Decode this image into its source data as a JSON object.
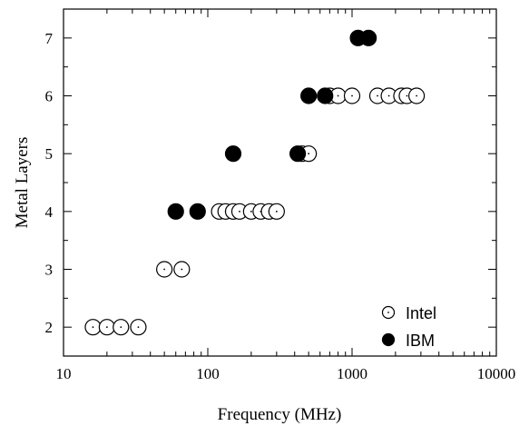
{
  "chart_data": {
    "type": "scatter",
    "title": "",
    "xlabel": "Frequency (MHz)",
    "ylabel": "Metal Layers",
    "xscale": "log",
    "xlim": [
      10,
      10000
    ],
    "ylim": [
      1.5,
      7.5
    ],
    "xticks": [
      10,
      100,
      1000,
      10000
    ],
    "xtick_labels": [
      "10",
      "100",
      "1000",
      "10000"
    ],
    "yticks": [
      2,
      3,
      4,
      5,
      6,
      7
    ],
    "ytick_labels": [
      "2",
      "3",
      "4",
      "5",
      "6",
      "7"
    ],
    "grid": false,
    "legend_position": "bottom-right",
    "series": [
      {
        "name": "Intel",
        "marker": "open-circle",
        "color": "#000000",
        "points": [
          {
            "x": 16,
            "y": 2
          },
          {
            "x": 20,
            "y": 2
          },
          {
            "x": 25,
            "y": 2
          },
          {
            "x": 33,
            "y": 2
          },
          {
            "x": 50,
            "y": 3
          },
          {
            "x": 66,
            "y": 3
          },
          {
            "x": 120,
            "y": 4
          },
          {
            "x": 133,
            "y": 4
          },
          {
            "x": 150,
            "y": 4
          },
          {
            "x": 166,
            "y": 4
          },
          {
            "x": 200,
            "y": 4
          },
          {
            "x": 233,
            "y": 4
          },
          {
            "x": 266,
            "y": 4
          },
          {
            "x": 300,
            "y": 4
          },
          {
            "x": 450,
            "y": 5
          },
          {
            "x": 500,
            "y": 5
          },
          {
            "x": 700,
            "y": 6
          },
          {
            "x": 800,
            "y": 6
          },
          {
            "x": 1000,
            "y": 6
          },
          {
            "x": 1500,
            "y": 6
          },
          {
            "x": 1800,
            "y": 6
          },
          {
            "x": 2200,
            "y": 6
          },
          {
            "x": 2400,
            "y": 6
          },
          {
            "x": 2800,
            "y": 6
          }
        ]
      },
      {
        "name": "IBM",
        "marker": "filled-circle",
        "color": "#000000",
        "points": [
          {
            "x": 60,
            "y": 4
          },
          {
            "x": 85,
            "y": 4
          },
          {
            "x": 150,
            "y": 5
          },
          {
            "x": 420,
            "y": 5
          },
          {
            "x": 500,
            "y": 6
          },
          {
            "x": 650,
            "y": 6
          },
          {
            "x": 1100,
            "y": 7
          },
          {
            "x": 1300,
            "y": 7
          }
        ]
      }
    ]
  }
}
